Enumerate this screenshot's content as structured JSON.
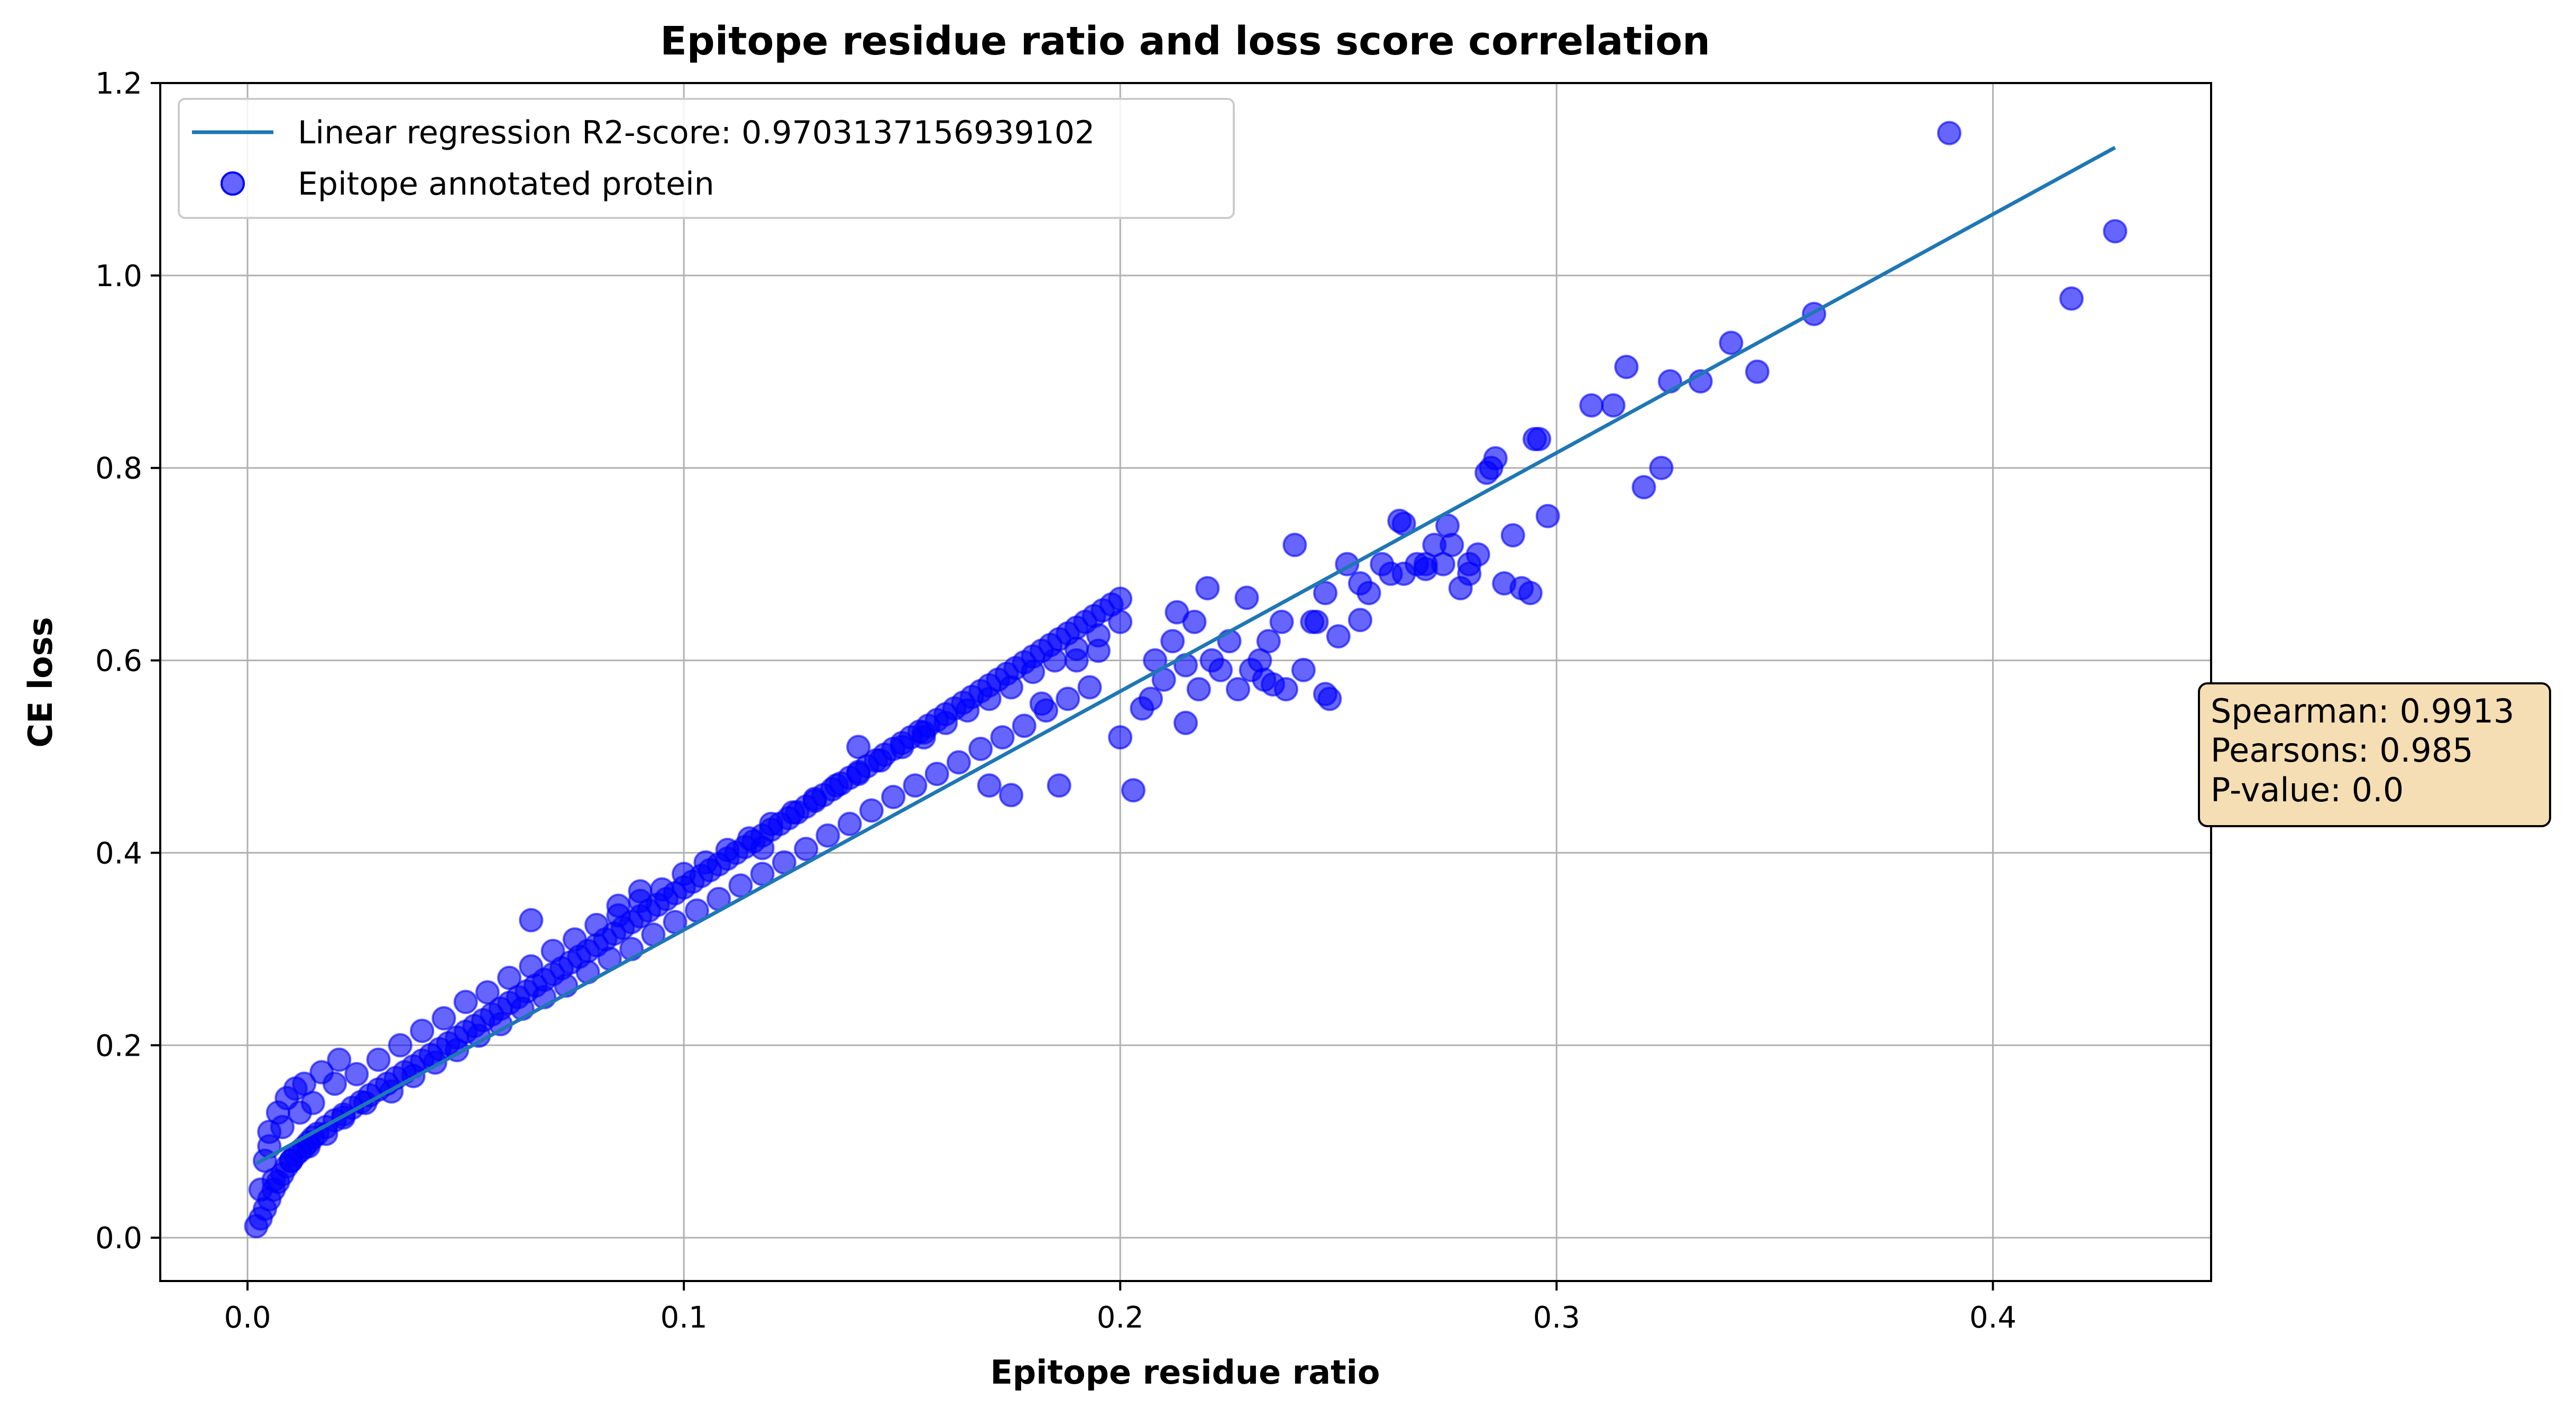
{
  "colors": {
    "points": "#0000ff",
    "regression_line": "#1f77b4",
    "grid": "#b0b0b0",
    "stats_box_fill": "#f5deb3",
    "stats_box_edge": "#000000"
  },
  "chart_data": {
    "type": "scatter",
    "title": "Epitope residue ratio and loss score correlation",
    "xlabel": "Epitope residue ratio",
    "ylabel": "CE loss",
    "xlim": [
      -0.02,
      0.45
    ],
    "ylim": [
      -0.045,
      1.2
    ],
    "xticks": [
      0.0,
      0.1,
      0.2,
      0.3,
      0.4
    ],
    "xtick_labels": [
      "0.0",
      "0.1",
      "0.2",
      "0.3",
      "0.4"
    ],
    "yticks": [
      0.0,
      0.2,
      0.4,
      0.6,
      0.8,
      1.0,
      1.2
    ],
    "ytick_labels": [
      "0.0",
      "0.2",
      "0.4",
      "0.6",
      "0.8",
      "1.0",
      "1.2"
    ],
    "grid": true,
    "legend_position": "top-left",
    "legend": [
      {
        "label": "Linear regression R2-score: 0.9703137156939102",
        "kind": "line"
      },
      {
        "label": "Epitope annotated protein",
        "kind": "marker"
      }
    ],
    "regression_line": {
      "x": [
        0.002,
        0.428
      ],
      "y": [
        0.077,
        1.133
      ]
    },
    "stats_box": {
      "lines": [
        "Spearman: 0.9913",
        "Pearsons: 0.985",
        "P-value: 0.0"
      ],
      "position": "right-middle"
    },
    "series": [
      {
        "name": "Epitope annotated protein",
        "type": "scatter",
        "x": [
          0.002,
          0.003,
          0.004,
          0.005,
          0.006,
          0.007,
          0.008,
          0.009,
          0.01,
          0.011,
          0.012,
          0.013,
          0.014,
          0.015,
          0.016,
          0.018,
          0.02,
          0.022,
          0.024,
          0.026,
          0.028,
          0.03,
          0.032,
          0.034,
          0.036,
          0.038,
          0.04,
          0.042,
          0.044,
          0.046,
          0.048,
          0.05,
          0.052,
          0.054,
          0.056,
          0.058,
          0.06,
          0.062,
          0.064,
          0.066,
          0.068,
          0.07,
          0.072,
          0.074,
          0.076,
          0.078,
          0.08,
          0.082,
          0.084,
          0.086,
          0.088,
          0.09,
          0.092,
          0.094,
          0.096,
          0.098,
          0.1,
          0.102,
          0.104,
          0.106,
          0.108,
          0.11,
          0.112,
          0.114,
          0.116,
          0.118,
          0.12,
          0.122,
          0.124,
          0.126,
          0.128,
          0.13,
          0.132,
          0.134,
          0.136,
          0.138,
          0.14,
          0.142,
          0.144,
          0.146,
          0.148,
          0.15,
          0.152,
          0.154,
          0.156,
          0.158,
          0.16,
          0.162,
          0.164,
          0.166,
          0.168,
          0.17,
          0.172,
          0.174,
          0.176,
          0.178,
          0.18,
          0.182,
          0.184,
          0.186,
          0.188,
          0.19,
          0.192,
          0.194,
          0.196,
          0.198,
          0.2,
          0.005,
          0.008,
          0.012,
          0.015,
          0.02,
          0.025,
          0.03,
          0.035,
          0.04,
          0.045,
          0.05,
          0.055,
          0.06,
          0.065,
          0.07,
          0.075,
          0.08,
          0.085,
          0.09,
          0.095,
          0.1,
          0.105,
          0.11,
          0.115,
          0.12,
          0.125,
          0.13,
          0.135,
          0.14,
          0.145,
          0.15,
          0.155,
          0.16,
          0.165,
          0.17,
          0.175,
          0.18,
          0.185,
          0.19,
          0.195,
          0.006,
          0.01,
          0.014,
          0.018,
          0.022,
          0.027,
          0.033,
          0.038,
          0.043,
          0.048,
          0.053,
          0.058,
          0.063,
          0.068,
          0.073,
          0.078,
          0.083,
          0.088,
          0.093,
          0.098,
          0.103,
          0.108,
          0.113,
          0.118,
          0.123,
          0.128,
          0.133,
          0.138,
          0.143,
          0.148,
          0.153,
          0.158,
          0.163,
          0.168,
          0.173,
          0.178,
          0.183,
          0.188,
          0.193,
          0.003,
          0.004,
          0.005,
          0.007,
          0.009,
          0.011,
          0.013,
          0.017,
          0.021,
          0.065,
          0.085,
          0.09,
          0.118,
          0.14,
          0.155,
          0.17,
          0.175,
          0.182,
          0.186,
          0.19,
          0.195,
          0.2,
          0.203,
          0.205,
          0.207,
          0.208,
          0.21,
          0.212,
          0.213,
          0.215,
          0.217,
          0.218,
          0.22,
          0.221,
          0.223,
          0.225,
          0.227,
          0.229,
          0.23,
          0.232,
          0.234,
          0.235,
          0.237,
          0.238,
          0.24,
          0.242,
          0.244,
          0.245,
          0.247,
          0.248,
          0.25,
          0.252,
          0.255,
          0.257,
          0.26,
          0.262,
          0.264,
          0.265,
          0.268,
          0.27,
          0.272,
          0.274,
          0.276,
          0.278,
          0.28,
          0.282,
          0.284,
          0.285,
          0.286,
          0.288,
          0.29,
          0.292,
          0.294,
          0.295,
          0.296,
          0.298,
          0.308,
          0.313,
          0.316,
          0.32,
          0.324,
          0.326,
          0.333,
          0.34,
          0.346,
          0.359,
          0.39,
          0.418,
          0.428,
          0.247,
          0.255,
          0.265,
          0.27,
          0.275,
          0.28,
          0.2,
          0.215,
          0.233
        ],
        "y": [
          0.012,
          0.02,
          0.03,
          0.04,
          0.05,
          0.058,
          0.066,
          0.074,
          0.08,
          0.086,
          0.09,
          0.094,
          0.099,
          0.104,
          0.108,
          0.115,
          0.122,
          0.128,
          0.135,
          0.141,
          0.148,
          0.154,
          0.16,
          0.166,
          0.172,
          0.178,
          0.184,
          0.19,
          0.196,
          0.202,
          0.208,
          0.214,
          0.22,
          0.226,
          0.232,
          0.238,
          0.244,
          0.25,
          0.256,
          0.262,
          0.268,
          0.274,
          0.28,
          0.286,
          0.292,
          0.298,
          0.304,
          0.31,
          0.316,
          0.322,
          0.328,
          0.334,
          0.34,
          0.346,
          0.352,
          0.358,
          0.364,
          0.37,
          0.376,
          0.382,
          0.388,
          0.394,
          0.4,
          0.406,
          0.412,
          0.418,
          0.424,
          0.43,
          0.436,
          0.442,
          0.448,
          0.454,
          0.46,
          0.466,
          0.472,
          0.478,
          0.484,
          0.49,
          0.496,
          0.502,
          0.508,
          0.514,
          0.52,
          0.526,
          0.532,
          0.538,
          0.544,
          0.55,
          0.556,
          0.562,
          0.568,
          0.574,
          0.58,
          0.586,
          0.592,
          0.598,
          0.604,
          0.61,
          0.616,
          0.622,
          0.628,
          0.634,
          0.64,
          0.646,
          0.652,
          0.658,
          0.664,
          0.095,
          0.115,
          0.13,
          0.14,
          0.16,
          0.17,
          0.185,
          0.2,
          0.215,
          0.228,
          0.245,
          0.255,
          0.27,
          0.282,
          0.298,
          0.31,
          0.325,
          0.335,
          0.35,
          0.362,
          0.378,
          0.39,
          0.403,
          0.415,
          0.43,
          0.442,
          0.456,
          0.47,
          0.482,
          0.496,
          0.51,
          0.52,
          0.535,
          0.548,
          0.56,
          0.572,
          0.588,
          0.6,
          0.612,
          0.626,
          0.06,
          0.08,
          0.095,
          0.108,
          0.125,
          0.14,
          0.152,
          0.168,
          0.182,
          0.195,
          0.21,
          0.222,
          0.238,
          0.25,
          0.262,
          0.276,
          0.29,
          0.3,
          0.315,
          0.328,
          0.34,
          0.352,
          0.366,
          0.378,
          0.39,
          0.404,
          0.418,
          0.43,
          0.444,
          0.458,
          0.47,
          0.482,
          0.494,
          0.508,
          0.52,
          0.532,
          0.548,
          0.56,
          0.572,
          0.05,
          0.08,
          0.11,
          0.13,
          0.145,
          0.155,
          0.16,
          0.172,
          0.185,
          0.33,
          0.345,
          0.36,
          0.405,
          0.51,
          0.525,
          0.47,
          0.46,
          0.555,
          0.47,
          0.6,
          0.61,
          0.64,
          0.465,
          0.55,
          0.56,
          0.6,
          0.58,
          0.62,
          0.65,
          0.595,
          0.64,
          0.57,
          0.675,
          0.6,
          0.59,
          0.62,
          0.57,
          0.665,
          0.59,
          0.6,
          0.62,
          0.575,
          0.64,
          0.57,
          0.72,
          0.59,
          0.64,
          0.64,
          0.67,
          0.56,
          0.625,
          0.7,
          0.68,
          0.67,
          0.7,
          0.69,
          0.745,
          0.69,
          0.7,
          0.7,
          0.72,
          0.7,
          0.72,
          0.675,
          0.7,
          0.71,
          0.795,
          0.8,
          0.81,
          0.68,
          0.73,
          0.675,
          0.67,
          0.83,
          0.83,
          0.75,
          0.865,
          0.865,
          0.905,
          0.78,
          0.8,
          0.89,
          0.89,
          0.93,
          0.9,
          0.96,
          1.148,
          0.976,
          1.046,
          0.565,
          0.642,
          0.742,
          0.695,
          0.74,
          0.69,
          0.52,
          0.535,
          0.58
        ]
      }
    ]
  }
}
